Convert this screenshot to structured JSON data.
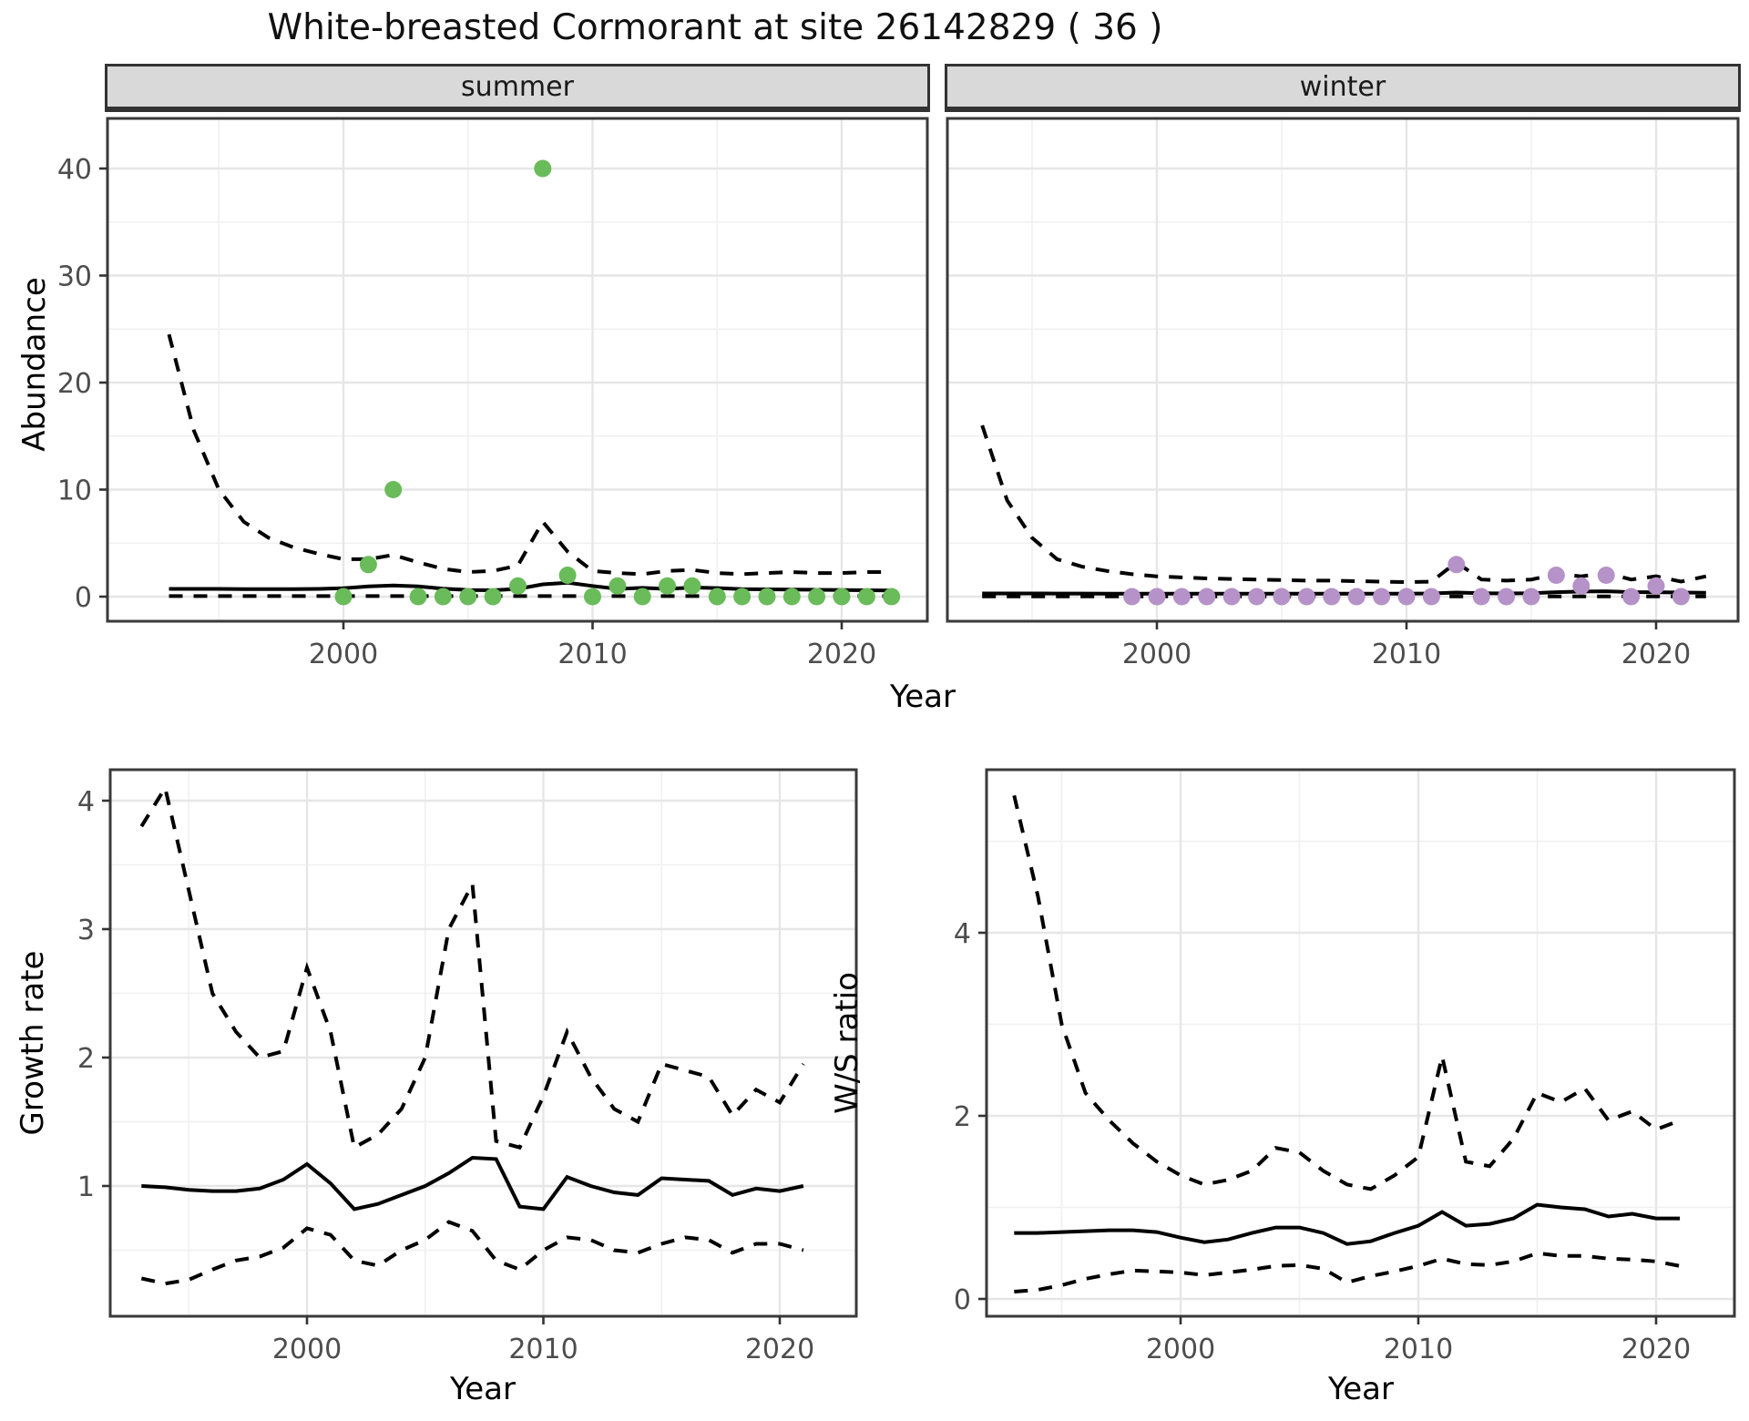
{
  "title": "White-breasted Cormorant at site 26142829 ( 36 )",
  "labels": {
    "year": "Year",
    "abundance": "Abundance",
    "growth_rate": "Growth rate",
    "ws_ratio": "W/S ratio",
    "facet_summer": "summer",
    "facet_winter": "winter"
  },
  "colors": {
    "summer_point": "#6ABB5A",
    "winter_point": "#B592C7",
    "line": "#000000",
    "strip_bg": "#D9D9D9",
    "panel_border": "#3A3A3A",
    "grid_major": "#E6E6E6",
    "grid_minor": "#F0F0F0",
    "tick_text": "#4D4D4D",
    "background": "#FFFFFF"
  },
  "chart_data": [
    {
      "id": "summer",
      "type": "scatter+line",
      "facet": "summer",
      "ylabel": "Abundance",
      "xlabel": "Year",
      "xticks": [
        2000,
        2010,
        2020
      ],
      "xminor": [
        1995,
        2005,
        2015
      ],
      "yticks": [
        0,
        10,
        20,
        30,
        40
      ],
      "yminor": [
        5,
        15,
        25,
        35
      ],
      "xlim": [
        1990.5,
        2023.4
      ],
      "ylim": [
        -2.3,
        44.7
      ],
      "points": {
        "year_start": 2000,
        "values": [
          0,
          3,
          10,
          0,
          0,
          0,
          0,
          1,
          40,
          2,
          0,
          1,
          0,
          1,
          1,
          0,
          0,
          0,
          0,
          0,
          0,
          0,
          0
        ]
      },
      "series": [
        {
          "name": "median_fit",
          "style": "solid",
          "year_start": 1993,
          "values": [
            0.72,
            0.72,
            0.72,
            0.71,
            0.7,
            0.7,
            0.72,
            0.78,
            0.95,
            1.05,
            0.95,
            0.75,
            0.62,
            0.6,
            0.72,
            1.15,
            1.3,
            1.0,
            0.72,
            0.82,
            0.72,
            0.85,
            0.8,
            0.7,
            0.68,
            0.66,
            0.64,
            0.62,
            0.6,
            0.58
          ]
        },
        {
          "name": "upper_ci",
          "style": "dashed",
          "year_start": 1993,
          "values": [
            24.5,
            15.5,
            10.0,
            7.0,
            5.5,
            4.6,
            4.0,
            3.5,
            3.5,
            3.9,
            3.2,
            2.6,
            2.3,
            2.4,
            2.9,
            7.0,
            4.2,
            2.4,
            2.2,
            2.1,
            2.4,
            2.5,
            2.2,
            2.1,
            2.2,
            2.3,
            2.2,
            2.2,
            2.3,
            2.3
          ]
        },
        {
          "name": "lower_ci",
          "style": "dashed",
          "year_start": 1993,
          "values": [
            0.05,
            0.05,
            0.05,
            0.05,
            0.05,
            0.05,
            0.05,
            0.05,
            0.05,
            0.05,
            0.05,
            0.05,
            0.05,
            0.05,
            0.05,
            0.05,
            0.05,
            0.05,
            0.05,
            0.05,
            0.05,
            0.05,
            0.05,
            0.05,
            0.05,
            0.05,
            0.05,
            0.05,
            0.05,
            0.05
          ]
        }
      ]
    },
    {
      "id": "winter",
      "type": "scatter+line",
      "facet": "winter",
      "ylabel": "Abundance",
      "xlabel": "Year",
      "xticks": [
        2000,
        2010,
        2020
      ],
      "xminor": [
        1995,
        2005,
        2015
      ],
      "yticks": [
        0,
        10,
        20,
        30,
        40
      ],
      "yminor": [
        5,
        15,
        25,
        35
      ],
      "xlim": [
        1991.6,
        2023.3
      ],
      "ylim": [
        -2.3,
        44.7
      ],
      "points": {
        "year_start": 1999,
        "values": [
          0,
          0,
          0,
          0,
          0,
          0,
          0,
          0,
          0,
          0,
          0,
          0,
          0,
          3,
          0,
          0,
          0,
          2,
          1,
          2,
          0,
          1,
          0
        ]
      },
      "series": [
        {
          "name": "median_fit",
          "style": "solid",
          "year_start": 1993,
          "values": [
            0.3,
            0.3,
            0.3,
            0.29,
            0.29,
            0.28,
            0.28,
            0.28,
            0.27,
            0.27,
            0.27,
            0.27,
            0.27,
            0.27,
            0.27,
            0.27,
            0.27,
            0.28,
            0.3,
            0.38,
            0.32,
            0.3,
            0.32,
            0.42,
            0.48,
            0.5,
            0.42,
            0.42,
            0.38,
            0.36
          ]
        },
        {
          "name": "upper_ci",
          "style": "dashed",
          "year_start": 1993,
          "values": [
            16.0,
            9.0,
            5.5,
            3.5,
            2.8,
            2.4,
            2.1,
            1.9,
            1.8,
            1.7,
            1.65,
            1.6,
            1.55,
            1.5,
            1.5,
            1.45,
            1.4,
            1.35,
            1.4,
            3.2,
            1.6,
            1.5,
            1.6,
            2.1,
            1.9,
            2.2,
            1.6,
            1.9,
            1.4,
            1.9
          ]
        },
        {
          "name": "lower_ci",
          "style": "dashed",
          "year_start": 1993,
          "values": [
            0.02,
            0.02,
            0.02,
            0.02,
            0.02,
            0.02,
            0.02,
            0.02,
            0.02,
            0.02,
            0.02,
            0.02,
            0.02,
            0.02,
            0.02,
            0.02,
            0.02,
            0.02,
            0.02,
            0.02,
            0.02,
            0.02,
            0.02,
            0.02,
            0.02,
            0.02,
            0.02,
            0.02,
            0.02,
            0.02
          ]
        }
      ]
    },
    {
      "id": "growth",
      "type": "line",
      "ylabel": "Growth rate",
      "xlabel": "Year",
      "xticks": [
        2000,
        2010,
        2020
      ],
      "xminor": [
        1995,
        2005,
        2015
      ],
      "yticks": [
        1,
        2,
        3,
        4
      ],
      "yminor": [
        0.5,
        1.5,
        2.5,
        3.5
      ],
      "xlim": [
        1991.7,
        2023.2
      ],
      "ylim": [
        -0.01,
        4.24
      ],
      "series": [
        {
          "name": "median_fit",
          "style": "solid",
          "year_start": 1993,
          "values": [
            1.0,
            0.99,
            0.97,
            0.96,
            0.96,
            0.98,
            1.05,
            1.17,
            1.02,
            0.82,
            0.86,
            0.93,
            1.0,
            1.1,
            1.22,
            1.21,
            0.84,
            0.82,
            1.07,
            1.0,
            0.95,
            0.93,
            1.06,
            1.05,
            1.04,
            0.93,
            0.98,
            0.96,
            1.0
          ]
        },
        {
          "name": "upper_ci",
          "style": "dashed",
          "year_start": 1993,
          "values": [
            3.8,
            4.1,
            3.3,
            2.5,
            2.2,
            2.0,
            2.05,
            2.7,
            2.2,
            1.3,
            1.4,
            1.6,
            2.0,
            3.0,
            3.35,
            1.35,
            1.3,
            1.7,
            2.2,
            1.85,
            1.6,
            1.5,
            1.95,
            1.9,
            1.85,
            1.55,
            1.75,
            1.65,
            1.95
          ]
        },
        {
          "name": "lower_ci",
          "style": "dashed",
          "year_start": 1993,
          "values": [
            0.28,
            0.24,
            0.27,
            0.35,
            0.42,
            0.45,
            0.52,
            0.67,
            0.62,
            0.42,
            0.38,
            0.5,
            0.58,
            0.72,
            0.65,
            0.42,
            0.35,
            0.5,
            0.6,
            0.58,
            0.5,
            0.48,
            0.55,
            0.6,
            0.58,
            0.48,
            0.55,
            0.55,
            0.5
          ]
        }
      ]
    },
    {
      "id": "ws",
      "type": "line",
      "ylabel": "W/S ratio",
      "xlabel": "Year",
      "xticks": [
        2000,
        2010,
        2020
      ],
      "xminor": [
        1995,
        2005,
        2015
      ],
      "yticks": [
        0,
        2,
        4
      ],
      "yminor": [
        1,
        3,
        5
      ],
      "xlim": [
        1991.8,
        2023.3
      ],
      "ylim": [
        -0.19,
        5.78
      ],
      "series": [
        {
          "name": "median_fit",
          "style": "solid",
          "year_start": 1993,
          "values": [
            0.72,
            0.72,
            0.73,
            0.74,
            0.75,
            0.75,
            0.73,
            0.67,
            0.62,
            0.65,
            0.72,
            0.78,
            0.78,
            0.72,
            0.6,
            0.63,
            0.72,
            0.8,
            0.95,
            0.8,
            0.82,
            0.88,
            1.03,
            1.0,
            0.98,
            0.9,
            0.93,
            0.88,
            0.88
          ]
        },
        {
          "name": "upper_ci",
          "style": "dashed",
          "year_start": 1993,
          "values": [
            5.5,
            4.4,
            3.0,
            2.25,
            1.95,
            1.7,
            1.5,
            1.35,
            1.25,
            1.3,
            1.4,
            1.65,
            1.6,
            1.4,
            1.25,
            1.2,
            1.35,
            1.55,
            2.65,
            1.5,
            1.45,
            1.75,
            2.25,
            2.15,
            2.3,
            1.95,
            2.05,
            1.85,
            1.95
          ]
        },
        {
          "name": "lower_ci",
          "style": "dashed",
          "year_start": 1993,
          "values": [
            0.08,
            0.1,
            0.15,
            0.22,
            0.27,
            0.31,
            0.3,
            0.29,
            0.26,
            0.29,
            0.32,
            0.36,
            0.37,
            0.33,
            0.18,
            0.25,
            0.3,
            0.36,
            0.44,
            0.38,
            0.37,
            0.41,
            0.5,
            0.47,
            0.47,
            0.44,
            0.43,
            0.41,
            0.36
          ]
        }
      ]
    }
  ]
}
